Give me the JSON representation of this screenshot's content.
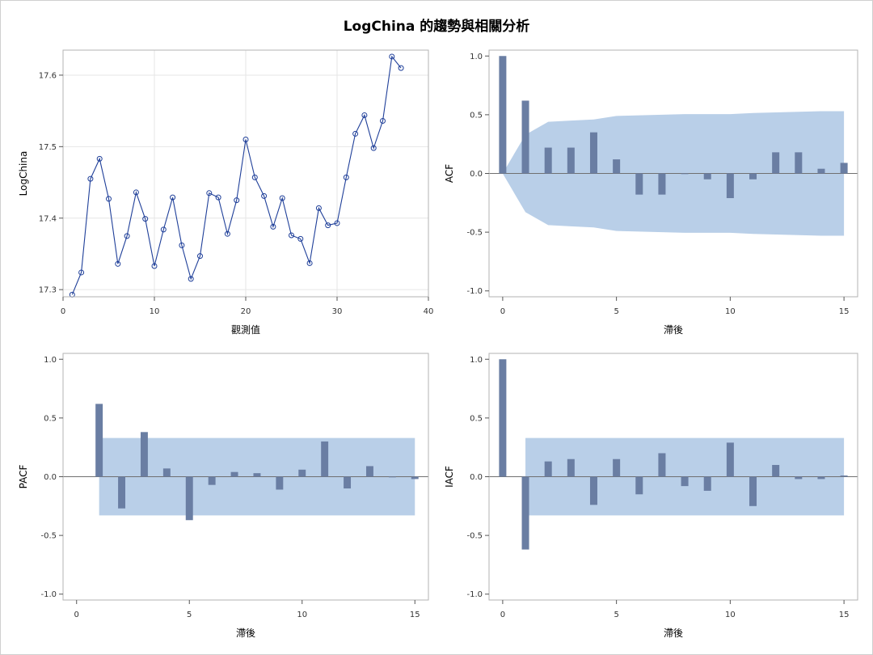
{
  "title": "LogChina 的趨勢與相關分析",
  "colors": {
    "line": "#1f3f99",
    "bar": "#6a7ea3",
    "band": "#b9cfe8",
    "grid": "#e6e6e6",
    "frame": "#b3b3b3"
  },
  "chart_data": [
    {
      "type": "line",
      "xlabel": "觀測值",
      "ylabel": "LogChina",
      "xlim": [
        0,
        40
      ],
      "ylim": [
        17.29,
        17.635
      ],
      "xticks": [
        0,
        10,
        20,
        30,
        40
      ],
      "yticks": [
        17.3,
        17.4,
        17.5,
        17.6
      ],
      "grid": true,
      "x": [
        1,
        2,
        3,
        4,
        5,
        6,
        7,
        8,
        9,
        10,
        11,
        12,
        13,
        14,
        15,
        16,
        17,
        18,
        19,
        20,
        21,
        22,
        23,
        24,
        25,
        26,
        27,
        28,
        29,
        30,
        31,
        32,
        33,
        34,
        35,
        36,
        37
      ],
      "y": [
        17.293,
        17.324,
        17.455,
        17.483,
        17.427,
        17.336,
        17.375,
        17.436,
        17.399,
        17.333,
        17.384,
        17.429,
        17.362,
        17.315,
        17.347,
        17.435,
        17.429,
        17.378,
        17.425,
        17.51,
        17.457,
        17.431,
        17.388,
        17.428,
        17.376,
        17.371,
        17.337,
        17.414,
        17.39,
        17.393,
        17.457,
        17.518,
        17.544,
        17.498,
        17.536,
        17.626,
        17.61
      ]
    },
    {
      "type": "bar",
      "xlabel": "滯後",
      "ylabel": "ACF",
      "xlim": [
        -0.6,
        15.6
      ],
      "ylim": [
        -1.05,
        1.05
      ],
      "xticks": [
        0,
        5,
        10,
        15
      ],
      "yticks": [
        -1.0,
        -0.5,
        0.0,
        0.5,
        1.0
      ],
      "lags": [
        0,
        1,
        2,
        3,
        4,
        5,
        6,
        7,
        8,
        9,
        10,
        11,
        12,
        13,
        14,
        15
      ],
      "values": [
        1.0,
        0.62,
        0.22,
        0.22,
        0.35,
        0.12,
        -0.18,
        -0.18,
        0.0,
        -0.05,
        -0.21,
        -0.05,
        0.18,
        0.18,
        0.04,
        0.09
      ],
      "band_x": [
        0,
        1,
        2,
        3,
        4,
        5,
        6,
        7,
        8,
        9,
        10,
        11,
        12,
        13,
        14,
        15
      ],
      "band": [
        0.0,
        0.33,
        0.44,
        0.45,
        0.46,
        0.49,
        0.495,
        0.5,
        0.505,
        0.505,
        0.505,
        0.515,
        0.52,
        0.525,
        0.53,
        0.53
      ]
    },
    {
      "type": "bar",
      "xlabel": "滯後",
      "ylabel": "PACF",
      "xlim": [
        -0.6,
        15.6
      ],
      "ylim": [
        -1.05,
        1.05
      ],
      "xticks": [
        0,
        5,
        10,
        15
      ],
      "yticks": [
        -1.0,
        -0.5,
        0.0,
        0.5,
        1.0
      ],
      "lags": [
        1,
        2,
        3,
        4,
        5,
        6,
        7,
        8,
        9,
        10,
        11,
        12,
        13,
        14,
        15
      ],
      "values": [
        0.62,
        -0.27,
        0.38,
        0.07,
        -0.37,
        -0.07,
        0.04,
        0.03,
        -0.11,
        0.06,
        0.3,
        -0.1,
        0.09,
        0.0,
        -0.02
      ],
      "band_x": [
        1,
        15
      ],
      "band": [
        0.33,
        0.33
      ]
    },
    {
      "type": "bar",
      "xlabel": "滯後",
      "ylabel": "IACF",
      "xlim": [
        -0.6,
        15.6
      ],
      "ylim": [
        -1.05,
        1.05
      ],
      "xticks": [
        0,
        5,
        10,
        15
      ],
      "yticks": [
        -1.0,
        -0.5,
        0.0,
        0.5,
        1.0
      ],
      "lags": [
        0,
        1,
        2,
        3,
        4,
        5,
        6,
        7,
        8,
        9,
        10,
        11,
        12,
        13,
        14,
        15
      ],
      "values": [
        1.0,
        -0.62,
        0.13,
        0.15,
        -0.24,
        0.15,
        -0.15,
        0.2,
        -0.08,
        -0.12,
        0.29,
        -0.25,
        0.1,
        -0.02,
        -0.02,
        0.01
      ],
      "band_x": [
        1,
        15
      ],
      "band": [
        0.33,
        0.33
      ]
    }
  ]
}
